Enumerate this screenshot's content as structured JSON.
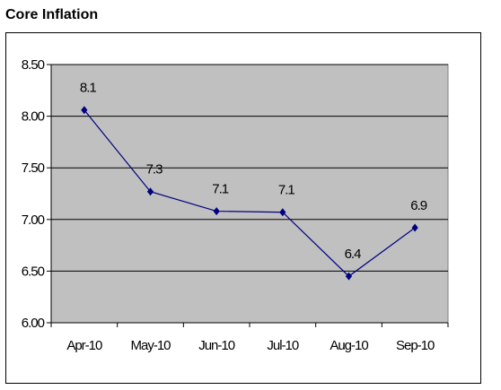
{
  "chart_data": {
    "type": "line",
    "title": "Core Inflation",
    "categories": [
      "Apr-10",
      "May-10",
      "Jun-10",
      "Jul-10",
      "Aug-10",
      "Sep-10"
    ],
    "values": [
      8.06,
      7.27,
      7.08,
      7.07,
      6.45,
      6.92
    ],
    "data_labels": [
      "8.1",
      "7.3",
      "7.1",
      "7.1",
      "6.4",
      "6.9"
    ],
    "ylim": [
      6.0,
      8.5
    ],
    "yticks": [
      "6.00",
      "6.50",
      "7.00",
      "7.50",
      "8.00",
      "8.50"
    ],
    "grid": true,
    "plot_background": "#c0c0c0",
    "line_color": "#000080",
    "legend": "none"
  }
}
